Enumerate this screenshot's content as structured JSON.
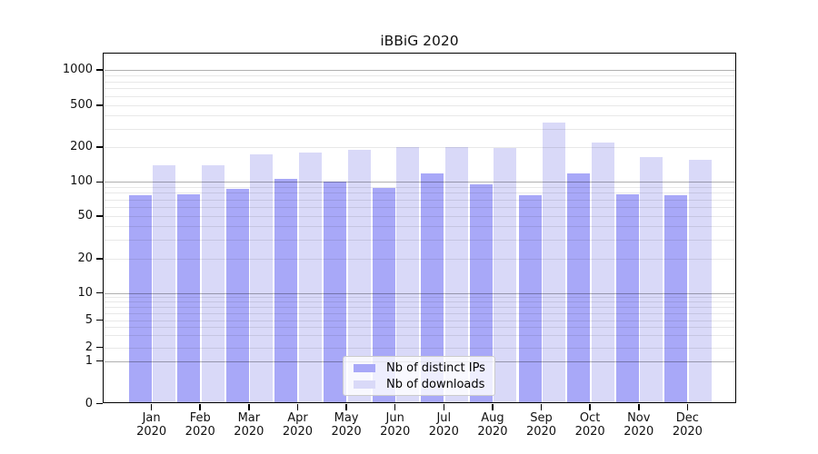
{
  "chart_data": {
    "type": "bar",
    "title": "iBBiG 2020",
    "categories": [
      "Jan",
      "Feb",
      "Mar",
      "Apr",
      "May",
      "Jun",
      "Jul",
      "Aug",
      "Sep",
      "Oct",
      "Nov",
      "Dec"
    ],
    "category_year": "2020",
    "series": [
      {
        "name": "Nb of distinct IPs",
        "color": "#a8a8f8",
        "values": [
          76,
          78,
          87,
          107,
          100,
          88,
          119,
          96,
          77,
          119,
          78,
          77
        ]
      },
      {
        "name": "Nb of downloads",
        "color": "#d9d9f8",
        "values": [
          140,
          140,
          174,
          180,
          188,
          202,
          200,
          198,
          343,
          222,
          164,
          156
        ]
      }
    ],
    "yticks": [
      0,
      1,
      2,
      5,
      10,
      20,
      50,
      100,
      200,
      500,
      1000
    ],
    "ylim": [
      0,
      1400
    ],
    "yscale": "log-with-zero",
    "xlabel": "",
    "ylabel": "",
    "grid": "horizontal",
    "legend_position": "inside-bottom-center"
  },
  "colors": {
    "major_grid": "#b0b0b0",
    "minor_grid": "#e8e8e8",
    "axis": "#000000",
    "background": "#ffffff",
    "legend_border": "#cccccc"
  }
}
